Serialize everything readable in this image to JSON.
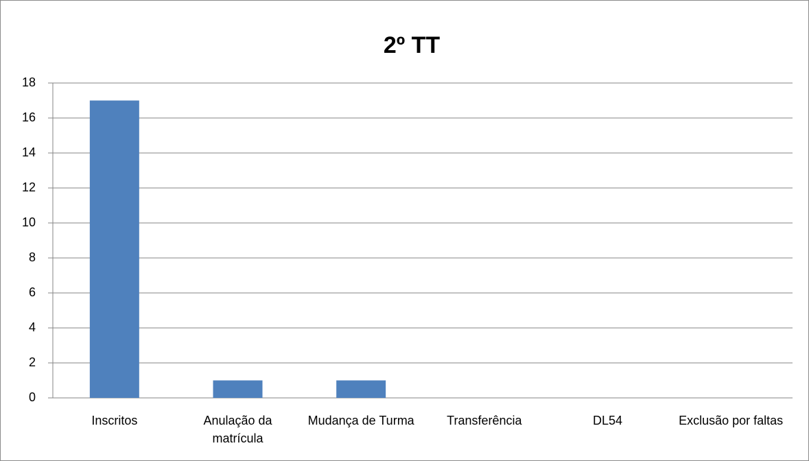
{
  "chart_data": {
    "type": "bar",
    "title": "2º TT",
    "categories": [
      "Inscritos",
      "Anulação da matrícula",
      "Mudança de Turma",
      "Transferência",
      "DL54",
      "Exclusão por faltas"
    ],
    "values": [
      17,
      1,
      1,
      0,
      0,
      0
    ],
    "color": "#4f81bd",
    "ylim": [
      0,
      18
    ],
    "yticks": [
      0,
      2,
      4,
      6,
      8,
      10,
      12,
      14,
      16,
      18
    ],
    "grid": true
  }
}
